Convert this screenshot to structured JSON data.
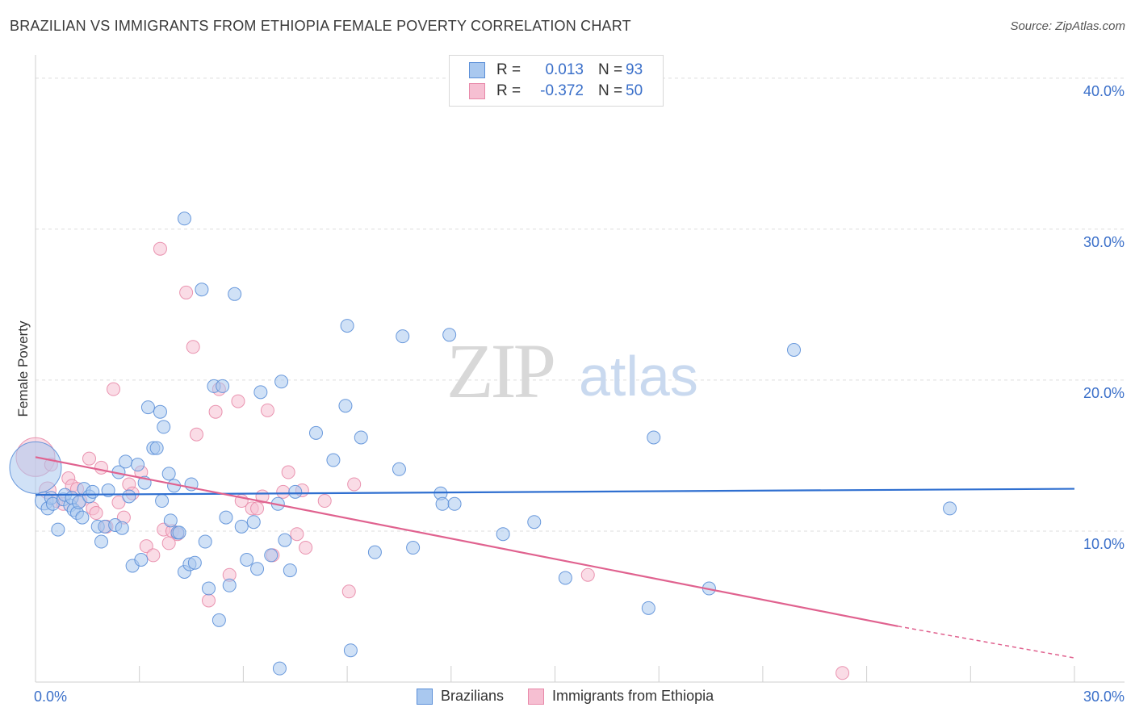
{
  "header": {
    "title": "BRAZILIAN VS IMMIGRANTS FROM ETHIOPIA FEMALE POVERTY CORRELATION CHART",
    "source": "Source: ZipAtlas.com"
  },
  "watermark": {
    "zip": "ZIP",
    "atlas": "atlas"
  },
  "legend_top": {
    "rows": [
      {
        "r_label": "R =",
        "r_value": "0.013",
        "n_label": "N =",
        "n_value": "93"
      },
      {
        "r_label": "R =",
        "r_value": "-0.372",
        "n_label": "N =",
        "n_value": "50"
      }
    ]
  },
  "legend_bottom": {
    "items": [
      "Brazilians",
      "Immigrants from Ethiopia"
    ]
  },
  "colors": {
    "blue_fill": "#a9c8ef",
    "blue_stroke": "#5b8fd8",
    "blue_line": "#2f6fd0",
    "pink_fill": "#f6bfd2",
    "pink_stroke": "#e889a9",
    "pink_line": "#e0628f",
    "tick_label": "#3a6fc9"
  },
  "chart_data": {
    "type": "scatter",
    "title": "BRAZILIAN VS IMMIGRANTS FROM ETHIOPIA FEMALE POVERTY CORRELATION CHART",
    "xlabel": "",
    "ylabel": "Female Poverty",
    "xlim": [
      0,
      30
    ],
    "ylim": [
      0,
      40
    ],
    "x_tick_labels": [
      "0.0%",
      "30.0%"
    ],
    "y_ticks": [
      10,
      20,
      30,
      40
    ],
    "y_tick_labels": [
      "10.0%",
      "20.0%",
      "30.0%",
      "40.0%"
    ],
    "grid": true,
    "legend": "top-center",
    "series": [
      {
        "name": "Brazilians",
        "r": 0.013,
        "n": 93,
        "trend": {
          "x0": 0,
          "y0": 12.4,
          "x1": 30,
          "y1": 12.8
        },
        "points": [
          [
            0,
            14.2,
            4
          ],
          [
            0.25,
            12.0,
            1.4
          ],
          [
            0.35,
            11.5,
            1
          ],
          [
            0.45,
            12.2,
            1
          ],
          [
            0.5,
            11.8,
            1
          ],
          [
            0.65,
            10.1,
            1
          ],
          [
            0.8,
            12.1,
            1
          ],
          [
            0.85,
            12.4,
            1
          ],
          [
            1.0,
            11.7,
            1
          ],
          [
            1.05,
            12.2,
            1
          ],
          [
            1.1,
            11.4,
            1
          ],
          [
            1.2,
            11.2,
            1
          ],
          [
            1.25,
            11.9,
            1
          ],
          [
            1.35,
            10.9,
            1
          ],
          [
            1.4,
            12.8,
            1
          ],
          [
            1.55,
            12.3,
            1
          ],
          [
            1.65,
            12.6,
            1
          ],
          [
            1.8,
            10.3,
            1
          ],
          [
            1.9,
            9.3,
            1
          ],
          [
            2.0,
            10.3,
            1
          ],
          [
            2.1,
            12.7,
            1
          ],
          [
            2.3,
            10.4,
            1
          ],
          [
            2.4,
            13.9,
            1
          ],
          [
            2.5,
            10.2,
            1
          ],
          [
            2.6,
            14.6,
            1
          ],
          [
            2.7,
            12.3,
            1
          ],
          [
            2.8,
            7.7,
            1
          ],
          [
            2.95,
            14.4,
            1
          ],
          [
            3.05,
            8.1,
            1
          ],
          [
            3.15,
            13.2,
            1
          ],
          [
            3.25,
            18.2,
            1
          ],
          [
            3.4,
            15.5,
            1
          ],
          [
            3.5,
            15.5,
            1
          ],
          [
            3.6,
            17.9,
            1
          ],
          [
            3.7,
            16.9,
            1
          ],
          [
            3.65,
            12.0,
            1
          ],
          [
            3.85,
            13.8,
            1
          ],
          [
            3.9,
            10.7,
            1
          ],
          [
            4.0,
            13.0,
            1
          ],
          [
            4.1,
            9.9,
            1
          ],
          [
            4.15,
            9.9,
            1
          ],
          [
            4.3,
            30.7,
            1
          ],
          [
            4.3,
            7.3,
            1
          ],
          [
            4.45,
            7.8,
            1
          ],
          [
            4.5,
            13.1,
            1
          ],
          [
            4.6,
            7.9,
            1
          ],
          [
            4.8,
            26.0,
            1
          ],
          [
            4.9,
            9.3,
            1
          ],
          [
            5.0,
            6.2,
            1
          ],
          [
            5.15,
            19.6,
            1
          ],
          [
            5.3,
            4.1,
            1
          ],
          [
            5.4,
            19.6,
            1
          ],
          [
            5.5,
            10.9,
            1
          ],
          [
            5.6,
            6.4,
            1
          ],
          [
            5.75,
            25.7,
            1
          ],
          [
            5.95,
            10.3,
            1
          ],
          [
            6.1,
            8.1,
            1
          ],
          [
            6.3,
            10.6,
            1
          ],
          [
            6.4,
            7.5,
            1
          ],
          [
            6.5,
            19.2,
            1
          ],
          [
            6.8,
            8.4,
            1
          ],
          [
            7.0,
            11.8,
            1
          ],
          [
            7.05,
            0.9,
            1
          ],
          [
            7.1,
            19.9,
            1
          ],
          [
            7.2,
            9.4,
            1
          ],
          [
            7.35,
            7.4,
            1
          ],
          [
            7.5,
            12.6,
            1
          ],
          [
            8.1,
            16.5,
            1
          ],
          [
            8.6,
            14.7,
            1
          ],
          [
            8.95,
            18.3,
            1
          ],
          [
            9.0,
            23.6,
            1
          ],
          [
            9.1,
            2.1,
            1
          ],
          [
            9.4,
            16.2,
            1
          ],
          [
            9.8,
            8.6,
            1
          ],
          [
            10.5,
            14.1,
            1
          ],
          [
            10.6,
            22.9,
            1
          ],
          [
            10.9,
            8.9,
            1
          ],
          [
            11.7,
            12.5,
            1
          ],
          [
            11.75,
            11.8,
            1
          ],
          [
            11.95,
            23.0,
            1
          ],
          [
            12.1,
            11.8,
            1
          ],
          [
            13.5,
            9.8,
            1
          ],
          [
            14.4,
            10.6,
            1
          ],
          [
            15.3,
            6.9,
            1
          ],
          [
            17.7,
            4.9,
            1
          ],
          [
            17.85,
            16.2,
            1
          ],
          [
            19.45,
            6.2,
            1
          ],
          [
            21.9,
            22.0,
            1
          ],
          [
            26.4,
            11.5,
            1
          ]
        ]
      },
      {
        "name": "Immigrants from Ethiopia",
        "r": -0.372,
        "n": 50,
        "trend": {
          "x0": 0,
          "y0": 14.9,
          "x1": 24.9,
          "y1": 3.7,
          "dash_x1": 30,
          "dash_y1": 1.6
        },
        "points": [
          [
            0,
            14.9,
            3
          ],
          [
            0.35,
            12.7,
            1.3
          ],
          [
            0.45,
            14.4,
            1
          ],
          [
            0.6,
            12.0,
            1
          ],
          [
            0.8,
            11.8,
            1
          ],
          [
            0.95,
            13.5,
            1
          ],
          [
            1.05,
            13.0,
            1
          ],
          [
            1.2,
            12.8,
            1
          ],
          [
            1.3,
            12.0,
            1
          ],
          [
            1.55,
            14.8,
            1
          ],
          [
            1.65,
            11.5,
            1
          ],
          [
            1.75,
            11.2,
            1
          ],
          [
            1.9,
            14.2,
            1
          ],
          [
            2.05,
            10.3,
            1
          ],
          [
            2.25,
            19.4,
            1
          ],
          [
            2.4,
            11.9,
            1
          ],
          [
            2.55,
            10.9,
            1
          ],
          [
            2.7,
            13.1,
            1
          ],
          [
            2.8,
            12.5,
            1
          ],
          [
            3.05,
            13.9,
            1
          ],
          [
            3.2,
            9.0,
            1
          ],
          [
            3.4,
            8.4,
            1
          ],
          [
            3.6,
            28.7,
            1
          ],
          [
            3.7,
            10.1,
            1
          ],
          [
            3.85,
            9.2,
            1
          ],
          [
            3.95,
            10.0,
            1
          ],
          [
            4.1,
            9.8,
            1
          ],
          [
            4.35,
            25.8,
            1
          ],
          [
            4.55,
            22.2,
            1
          ],
          [
            4.65,
            16.4,
            1
          ],
          [
            5.0,
            5.4,
            1
          ],
          [
            5.2,
            17.9,
            1
          ],
          [
            5.3,
            19.4,
            1
          ],
          [
            5.6,
            7.1,
            1
          ],
          [
            5.85,
            18.6,
            1
          ],
          [
            5.95,
            12.0,
            1
          ],
          [
            6.25,
            11.5,
            1
          ],
          [
            6.4,
            11.5,
            1
          ],
          [
            6.55,
            12.3,
            1
          ],
          [
            6.7,
            18.0,
            1
          ],
          [
            6.85,
            8.4,
            1
          ],
          [
            7.15,
            12.6,
            1
          ],
          [
            7.3,
            13.9,
            1
          ],
          [
            7.55,
            9.8,
            1
          ],
          [
            7.7,
            12.7,
            1
          ],
          [
            7.8,
            8.9,
            1
          ],
          [
            8.35,
            12.0,
            1
          ],
          [
            9.05,
            6.0,
            1
          ],
          [
            9.2,
            13.1,
            1
          ],
          [
            15.95,
            7.1,
            1
          ],
          [
            23.3,
            0.6,
            1
          ]
        ]
      }
    ]
  }
}
